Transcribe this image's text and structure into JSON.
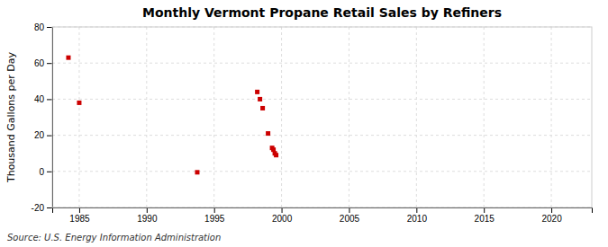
{
  "chart_data": {
    "type": "scatter",
    "title": "Monthly Vermont Propane Retail Sales by Refiners",
    "ylabel": "Thousand Gallons per Day",
    "annotations": [
      "Source: U.S. Energy Information Administration"
    ],
    "x": [
      1984.2,
      1985.0,
      1993.75,
      1998.2,
      1998.4,
      1998.6,
      1999.0,
      1999.3,
      1999.4,
      1999.5,
      1999.6
    ],
    "values": [
      63,
      38,
      -0.5,
      44,
      40,
      35,
      21,
      13,
      12,
      10,
      9
    ],
    "color": "#cc0000",
    "marker": "square",
    "xlim": [
      1983,
      2023
    ],
    "ylim": [
      -20,
      80
    ],
    "xticks": [
      1985,
      1990,
      1995,
      2000,
      2005,
      2010,
      2015,
      2020
    ],
    "yticks": [
      -20,
      0,
      20,
      40,
      60,
      80
    ],
    "grid": true
  }
}
